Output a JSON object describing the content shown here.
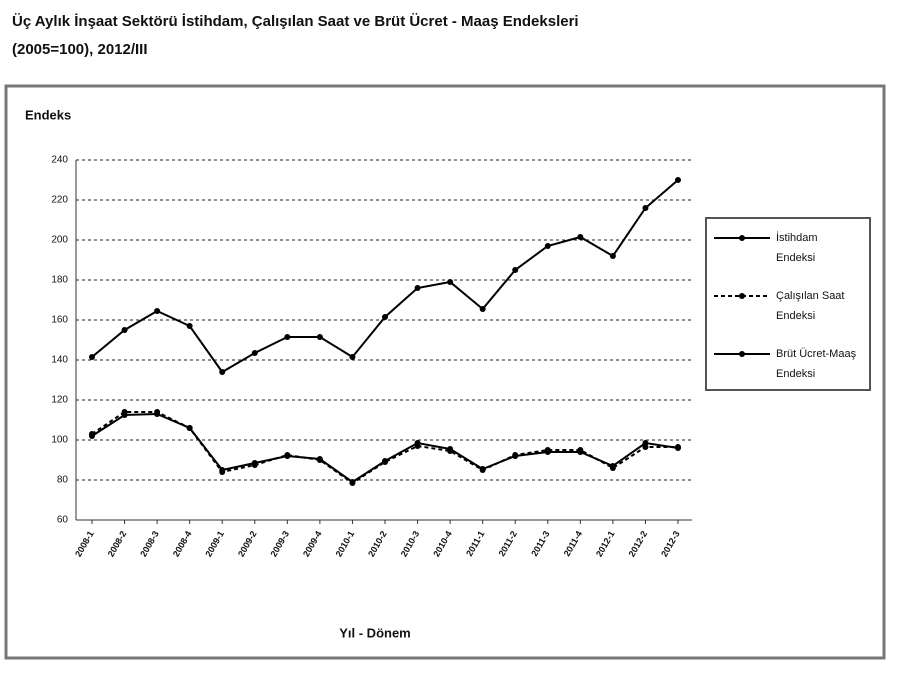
{
  "chart_data": {
    "type": "line",
    "title": "Üç Aylık İnşaat Sektörü İstihdam, Çalışılan Saat ve Brüt Ücret - Maaş Endeksleri",
    "subtitle": "(2005=100), 2012/III",
    "y_label": "Endeks",
    "x_label": "Yıl - Dönem",
    "categories": [
      "2008-1",
      "2008-2",
      "2008-3",
      "2008-4",
      "2009-1",
      "2009-2",
      "2009-3",
      "2009-4",
      "2010-1",
      "2010-2",
      "2010-3",
      "2010-4",
      "2011-1",
      "2011-2",
      "2011-3",
      "2011-4",
      "2012-1",
      "2012-2",
      "2012-3"
    ],
    "series": [
      {
        "name": "İstihdam Endeksi",
        "color": "#000000",
        "dash": false,
        "values": [
          141.5,
          155,
          164.5,
          157,
          134,
          143.5,
          151.5,
          151.5,
          141.5,
          161.5,
          176,
          179,
          165.5,
          185,
          197,
          201.5,
          192,
          216,
          230
        ]
      },
      {
        "name": "Çalışılan Saat Endeksi",
        "color": "#000000",
        "dash": true,
        "values": [
          103,
          114,
          114,
          106,
          84,
          87.5,
          92.5,
          90,
          78.5,
          89,
          97,
          94.5,
          85,
          92.5,
          95,
          95,
          86,
          96.5,
          96.5
        ]
      },
      {
        "name": "Brüt Ücret-Maaş Endeksi",
        "color": "#000000",
        "dash": false,
        "values": [
          102,
          112.5,
          113,
          106,
          85,
          88.5,
          92,
          90.5,
          79,
          89.5,
          98.5,
          95.5,
          85.5,
          92,
          94,
          94,
          87,
          98.5,
          96
        ]
      }
    ],
    "ylim": [
      60,
      240
    ],
    "yticks": [
      60,
      80,
      100,
      120,
      140,
      160,
      180,
      200,
      220,
      240
    ],
    "grid": true,
    "legend": "right"
  }
}
